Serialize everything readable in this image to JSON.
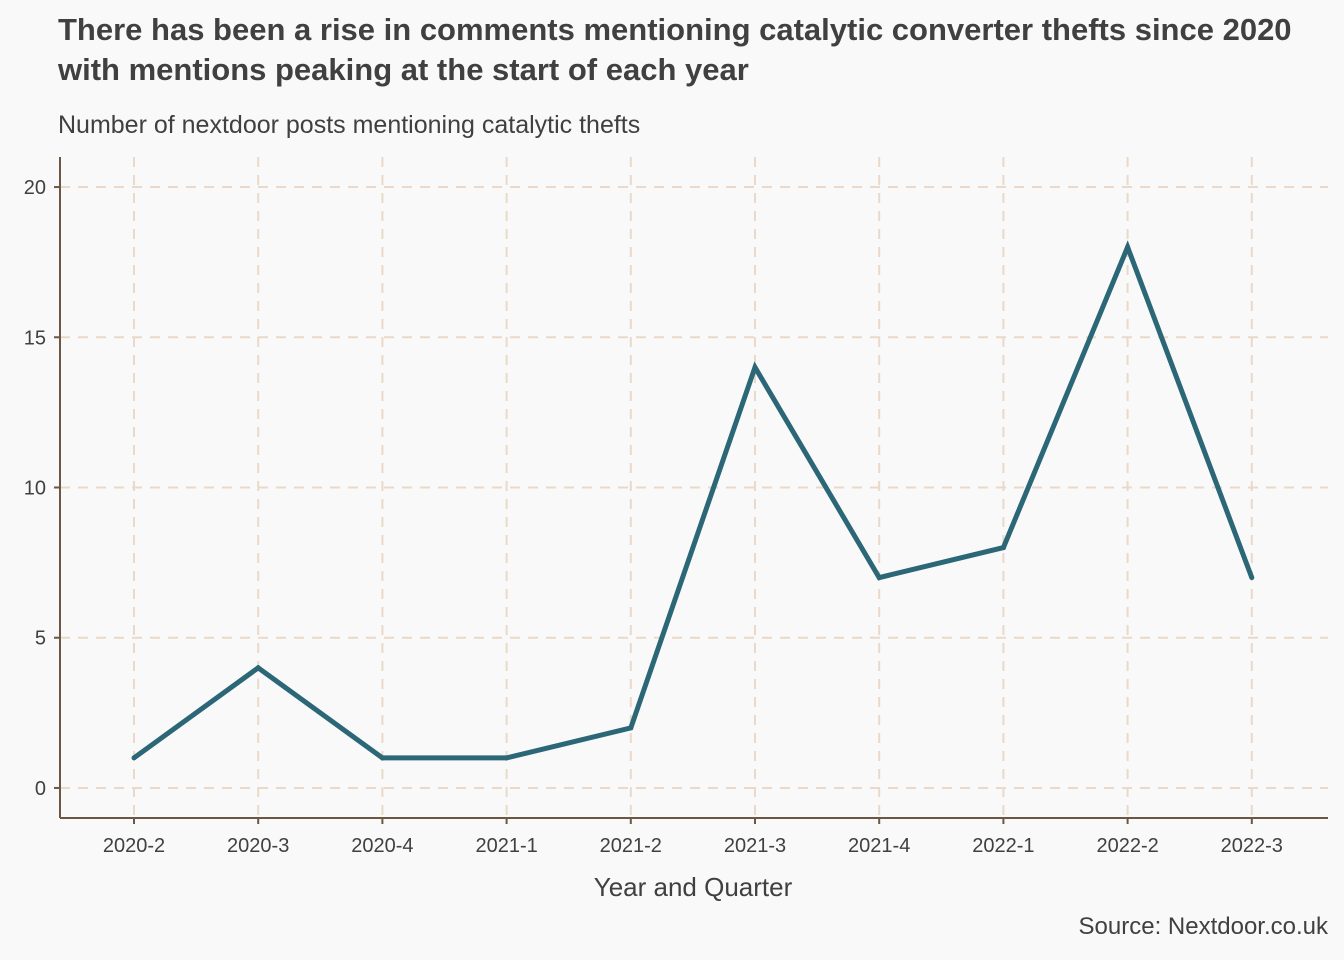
{
  "title": "There has been a rise in comments mentioning catalytic converter thefts since 2020 with mentions peaking at the start of each year",
  "subtitle": "Number of nextdoor posts mentioning catalytic thefts",
  "caption": "Source: Nextdoor.co.uk",
  "colors": {
    "line": "#2b6777",
    "grid": "#ead9c8",
    "axis": "#6b5842",
    "text": "#404040",
    "background": "#f9f9f9"
  },
  "chart_data": {
    "type": "line",
    "categories": [
      "2020-2",
      "2020-3",
      "2020-4",
      "2021-1",
      "2021-2",
      "2021-3",
      "2021-4",
      "2022-1",
      "2022-2",
      "2022-3"
    ],
    "values": [
      1,
      4,
      1,
      1,
      2,
      14,
      7,
      8,
      18,
      7
    ],
    "xlabel": "Year and Quarter",
    "ylabel": "",
    "ylim": [
      -1,
      21
    ],
    "yticks": [
      0,
      5,
      10,
      15,
      20
    ],
    "grid": true,
    "legend": "none"
  }
}
